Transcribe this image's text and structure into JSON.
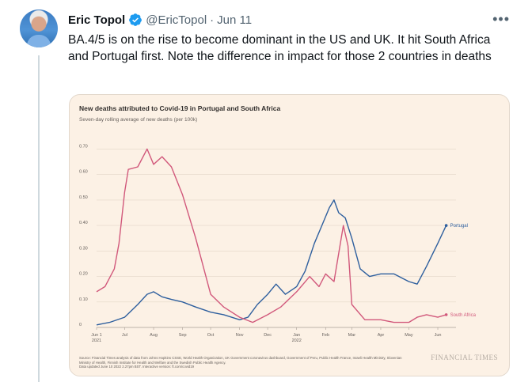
{
  "tweet": {
    "author_name": "Eric Topol",
    "handle": "@EricTopol",
    "separator": "·",
    "date": "Jun 11",
    "more": "•••",
    "text": "BA.4/5 is on the rise to become dominant in the US and UK. It hit South Africa and Portugal first. Note the difference in impact for those 2 countries in deaths"
  },
  "chart_data": {
    "type": "line",
    "title": "New deaths attributed to Covid-19 in Portugal and South Africa",
    "subtitle": "Seven-day rolling average of new deaths (per 100k)",
    "ylim": [
      0,
      0.72
    ],
    "yticks": [
      "0",
      "0.10",
      "0.20",
      "0.30",
      "0.40",
      "0.50",
      "0.60",
      "0.70"
    ],
    "xlim": [
      "2021-06-01",
      "2022-06-12"
    ],
    "xticks": [
      {
        "label": "Jun 1",
        "sub": "2021",
        "date": "2021-06-01"
      },
      {
        "label": "Jul",
        "date": "2021-07-01"
      },
      {
        "label": "Aug",
        "date": "2021-08-01"
      },
      {
        "label": "Sep",
        "date": "2021-09-01"
      },
      {
        "label": "Oct",
        "date": "2021-10-01"
      },
      {
        "label": "Nov",
        "date": "2021-11-01"
      },
      {
        "label": "Dec",
        "date": "2021-12-01"
      },
      {
        "label": "Jan",
        "sub": "2022",
        "date": "2022-01-01"
      },
      {
        "label": "Feb",
        "date": "2022-02-01"
      },
      {
        "label": "Mar",
        "date": "2022-03-01"
      },
      {
        "label": "Apr",
        "date": "2022-04-01"
      },
      {
        "label": "May",
        "date": "2022-05-01"
      },
      {
        "label": "Jun",
        "date": "2022-06-01"
      }
    ],
    "grid": true,
    "series": [
      {
        "name": "Portugal",
        "color": "#2e5f9e",
        "points": [
          [
            "2021-06-01",
            0.01
          ],
          [
            "2021-06-15",
            0.02
          ],
          [
            "2021-07-01",
            0.04
          ],
          [
            "2021-07-15",
            0.09
          ],
          [
            "2021-07-25",
            0.13
          ],
          [
            "2021-08-01",
            0.14
          ],
          [
            "2021-08-10",
            0.12
          ],
          [
            "2021-08-20",
            0.11
          ],
          [
            "2021-09-01",
            0.1
          ],
          [
            "2021-09-15",
            0.08
          ],
          [
            "2021-10-01",
            0.06
          ],
          [
            "2021-10-15",
            0.05
          ],
          [
            "2021-11-01",
            0.03
          ],
          [
            "2021-11-10",
            0.04
          ],
          [
            "2021-11-20",
            0.09
          ],
          [
            "2021-12-01",
            0.13
          ],
          [
            "2021-12-10",
            0.17
          ],
          [
            "2021-12-20",
            0.13
          ],
          [
            "2022-01-01",
            0.16
          ],
          [
            "2022-01-10",
            0.22
          ],
          [
            "2022-01-20",
            0.33
          ],
          [
            "2022-01-28",
            0.4
          ],
          [
            "2022-02-05",
            0.47
          ],
          [
            "2022-02-10",
            0.5
          ],
          [
            "2022-02-15",
            0.45
          ],
          [
            "2022-02-22",
            0.43
          ],
          [
            "2022-03-01",
            0.35
          ],
          [
            "2022-03-10",
            0.23
          ],
          [
            "2022-03-20",
            0.2
          ],
          [
            "2022-04-01",
            0.21
          ],
          [
            "2022-04-15",
            0.21
          ],
          [
            "2022-05-01",
            0.18
          ],
          [
            "2022-05-10",
            0.17
          ],
          [
            "2022-05-20",
            0.24
          ],
          [
            "2022-06-01",
            0.33
          ],
          [
            "2022-06-10",
            0.4
          ]
        ]
      },
      {
        "name": "South Africa",
        "color": "#d1587b",
        "points": [
          [
            "2021-06-01",
            0.14
          ],
          [
            "2021-06-10",
            0.16
          ],
          [
            "2021-06-20",
            0.23
          ],
          [
            "2021-06-25",
            0.33
          ],
          [
            "2021-07-01",
            0.53
          ],
          [
            "2021-07-05",
            0.62
          ],
          [
            "2021-07-15",
            0.63
          ],
          [
            "2021-07-25",
            0.7
          ],
          [
            "2021-08-01",
            0.64
          ],
          [
            "2021-08-10",
            0.67
          ],
          [
            "2021-08-20",
            0.63
          ],
          [
            "2021-09-01",
            0.52
          ],
          [
            "2021-09-15",
            0.35
          ],
          [
            "2021-10-01",
            0.13
          ],
          [
            "2021-10-15",
            0.08
          ],
          [
            "2021-11-01",
            0.04
          ],
          [
            "2021-11-15",
            0.02
          ],
          [
            "2021-12-01",
            0.05
          ],
          [
            "2021-12-15",
            0.08
          ],
          [
            "2022-01-01",
            0.14
          ],
          [
            "2022-01-15",
            0.2
          ],
          [
            "2022-01-25",
            0.16
          ],
          [
            "2022-02-01",
            0.21
          ],
          [
            "2022-02-10",
            0.18
          ],
          [
            "2022-02-20",
            0.4
          ],
          [
            "2022-02-25",
            0.32
          ],
          [
            "2022-03-01",
            0.09
          ],
          [
            "2022-03-15",
            0.03
          ],
          [
            "2022-04-01",
            0.03
          ],
          [
            "2022-04-15",
            0.02
          ],
          [
            "2022-05-01",
            0.02
          ],
          [
            "2022-05-10",
            0.04
          ],
          [
            "2022-05-20",
            0.05
          ],
          [
            "2022-06-01",
            0.04
          ],
          [
            "2022-06-10",
            0.05
          ]
        ]
      }
    ],
    "source": "Source: Financial Times analysis of data from Johns Hopkins CSSE, World Health Organization, UK Government coronavirus dashboard, Government of Peru, Public Health France, Israeli Health Ministry, Slovenian Ministry of Health, Finnish Institute for Health and Welfare and the Swedish Public Health Agency.",
    "updated": "Data updated June 10 2022 2.27pm BST. Interactive version: ft.com/covid19",
    "publisher": "FINANCIAL TIMES"
  }
}
